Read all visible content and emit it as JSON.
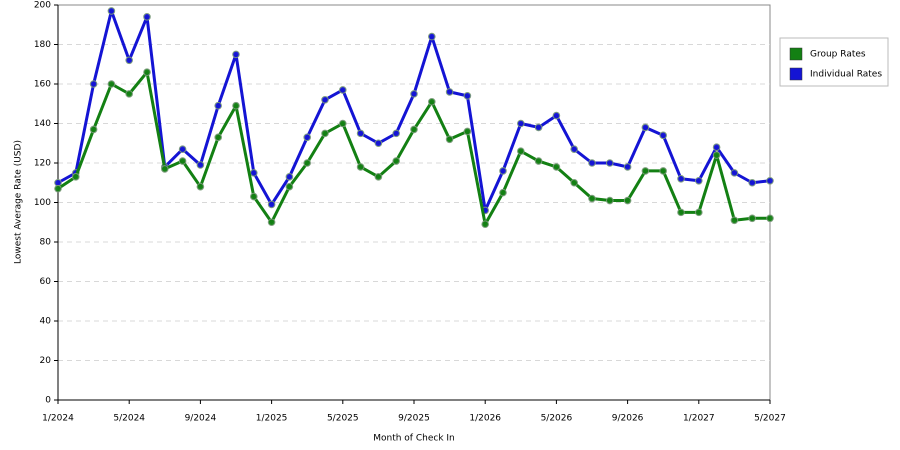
{
  "chart_data": {
    "type": "line",
    "x_label": "Month of Check In",
    "y_label": "Lowest Average Rate (USD)",
    "categories": [
      "1/2024",
      null,
      null,
      null,
      "5/2024",
      null,
      null,
      null,
      "9/2024",
      null,
      null,
      null,
      "1/2025",
      null,
      null,
      null,
      "5/2025",
      null,
      null,
      null,
      "9/2025",
      null,
      null,
      null,
      "1/2026",
      null,
      null,
      null,
      "5/2026",
      null,
      null,
      null,
      "9/2026",
      null,
      null,
      null,
      "1/2027",
      null,
      null,
      null,
      "5/2027"
    ],
    "series": [
      {
        "name": "Group Rates",
        "color": "#138013",
        "values": [
          107,
          113,
          137,
          160,
          155,
          166,
          117,
          121,
          108,
          133,
          149,
          103,
          90,
          108,
          120,
          135,
          140,
          118,
          113,
          121,
          137,
          151,
          132,
          136,
          89,
          105,
          126,
          121,
          118,
          110,
          102,
          101,
          101,
          116,
          116,
          95,
          95,
          124,
          91,
          92,
          92
        ]
      },
      {
        "name": "Individual Rates",
        "color": "#1414d4",
        "values": [
          110,
          115,
          160,
          197,
          172,
          194,
          118,
          127,
          119,
          149,
          175,
          115,
          99,
          113,
          133,
          152,
          157,
          135,
          130,
          135,
          155,
          184,
          156,
          154,
          96,
          116,
          140,
          138,
          144,
          127,
          120,
          120,
          118,
          138,
          134,
          112,
          111,
          128,
          115,
          110,
          111
        ]
      }
    ],
    "ylim": [
      0,
      200
    ],
    "yticks": [
      0,
      20,
      40,
      60,
      80,
      100,
      120,
      140,
      160,
      180,
      200
    ],
    "grid": true
  }
}
